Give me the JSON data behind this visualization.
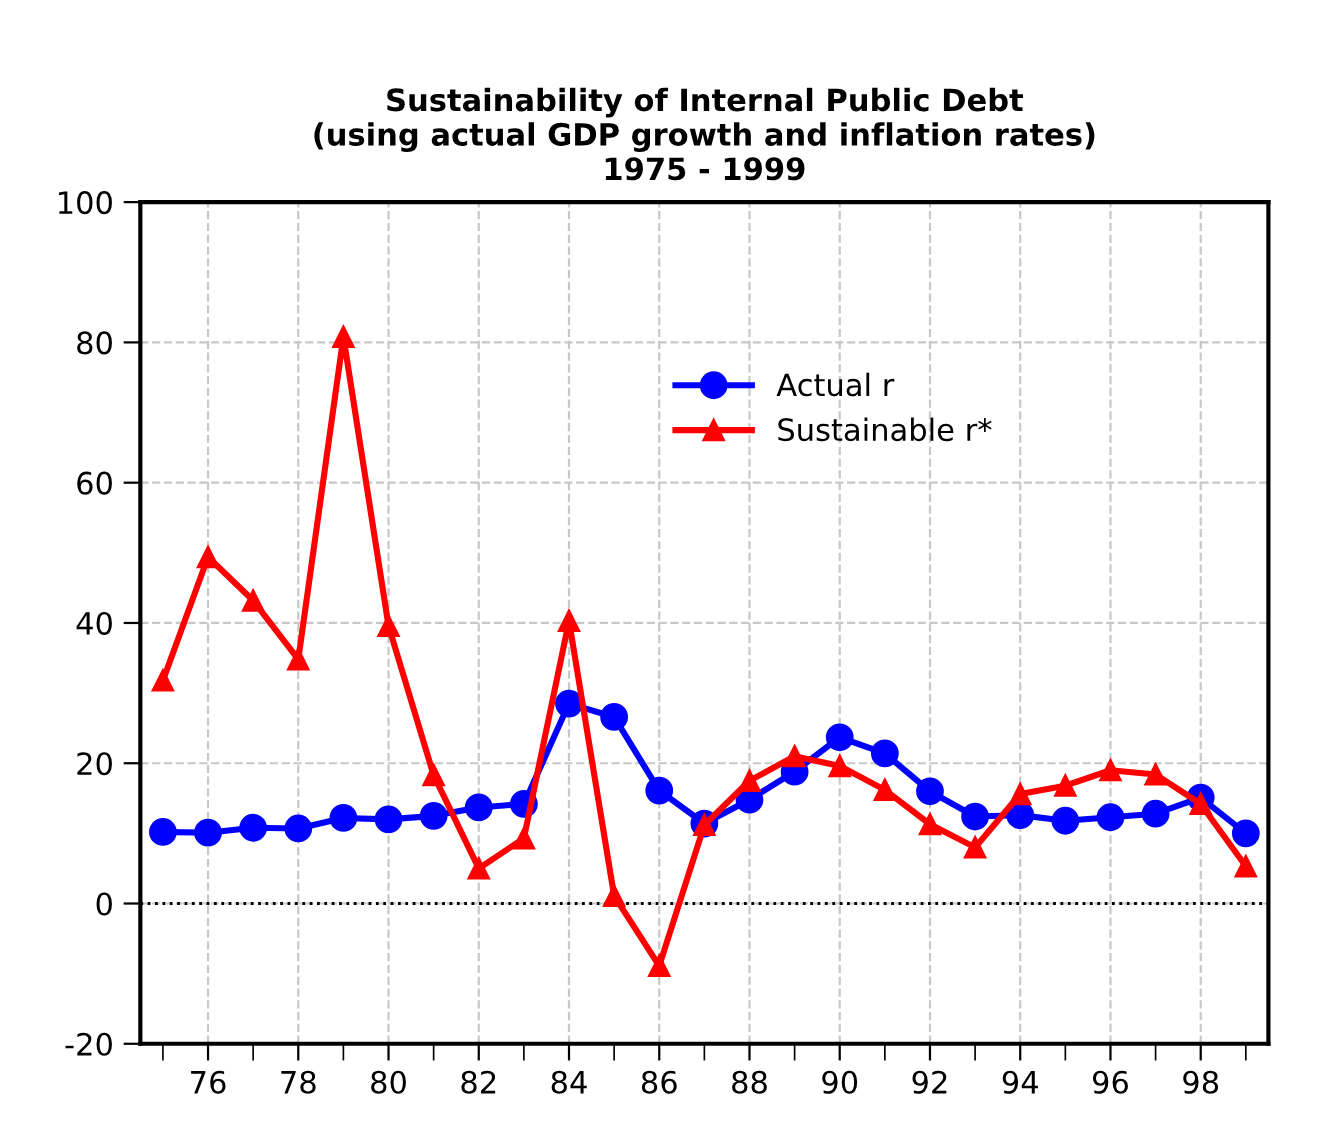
{
  "chart_data": {
    "type": "line",
    "title": "Sustainability of Internal Public Debt\n(using actual GDP growth and inflation rates)\n1975 - 1999",
    "x": [
      75,
      76,
      77,
      78,
      79,
      80,
      81,
      82,
      83,
      84,
      85,
      86,
      87,
      88,
      89,
      90,
      91,
      92,
      93,
      94,
      95,
      96,
      97,
      98,
      99
    ],
    "series": [
      {
        "name": "Actual r",
        "color": "#0000ff",
        "marker": "circle",
        "values": [
          10.2,
          10.1,
          10.8,
          10.7,
          12.2,
          12.0,
          12.5,
          13.7,
          14.2,
          28.5,
          26.6,
          16.1,
          11.4,
          14.8,
          18.8,
          23.7,
          21.4,
          16.0,
          12.4,
          12.6,
          11.8,
          12.3,
          12.8,
          15.1,
          10.0
        ]
      },
      {
        "name": "Sustainable r*",
        "color": "#ff0000",
        "marker": "triangle",
        "values": [
          31.8,
          49.4,
          43.2,
          34.8,
          80.8,
          39.6,
          18.3,
          5.0,
          9.3,
          40.3,
          1.1,
          -8.9,
          11.2,
          17.5,
          21.0,
          19.6,
          16.2,
          11.3,
          8.0,
          15.6,
          16.8,
          19.0,
          18.4,
          14.2,
          5.3
        ]
      }
    ],
    "xlim": [
      74.5,
      99.5
    ],
    "xticks": [
      {
        "value": 75,
        "label": null
      },
      76,
      {
        "value": 77,
        "label": null
      },
      78,
      {
        "value": 79,
        "label": null
      },
      80,
      {
        "value": 81,
        "label": null
      },
      82,
      {
        "value": 83,
        "label": null
      },
      84,
      {
        "value": 85,
        "label": null
      },
      86,
      {
        "value": 87,
        "label": null
      },
      88,
      {
        "value": 89,
        "label": null
      },
      90,
      {
        "value": 91,
        "label": null
      },
      92,
      {
        "value": 93,
        "label": null
      },
      94,
      {
        "value": 95,
        "label": null
      },
      96,
      {
        "value": 97,
        "label": null
      },
      98,
      {
        "value": 99,
        "label": null
      }
    ],
    "ylim": [
      -20,
      100
    ],
    "yticks": [
      -20,
      0,
      20,
      40,
      60,
      80,
      100
    ],
    "ref_lines": [
      {
        "axis": "y",
        "value": 0,
        "color": "#000000",
        "line_style": "dotted"
      }
    ],
    "grid": true,
    "legend": "top center",
    "line_style": "solid"
  }
}
